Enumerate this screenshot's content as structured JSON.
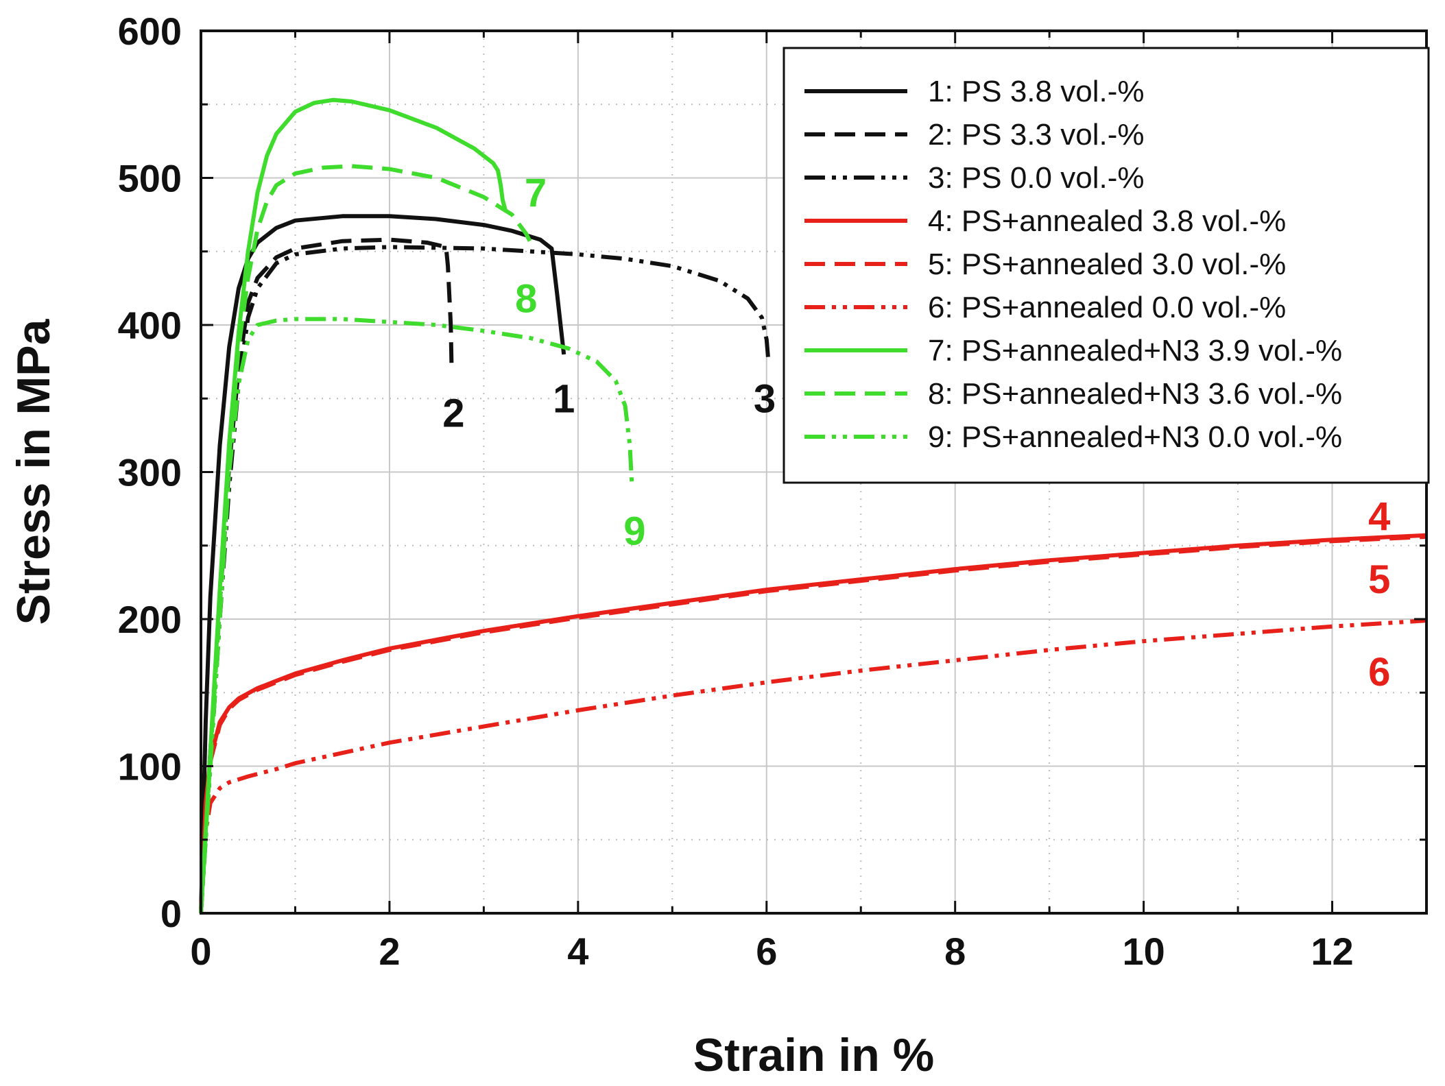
{
  "chart_data": {
    "type": "line",
    "title": "",
    "xlabel": "Strain in %",
    "ylabel": "Stress in MPa",
    "xlim": [
      0,
      13
    ],
    "ylim": [
      0,
      600
    ],
    "x_ticks": [
      0,
      2,
      4,
      6,
      8,
      10,
      12
    ],
    "y_ticks": [
      0,
      100,
      200,
      300,
      400,
      500,
      600
    ],
    "grid": true,
    "legend_position": "top-right",
    "colors": {
      "black": "#111111",
      "red": "#e8201a",
      "green": "#3fdc2e"
    },
    "series": [
      {
        "name": "1: PS 3.8 vol.-%",
        "label": "1",
        "color": "#111111",
        "dash": "solid",
        "x": [
          0,
          0.05,
          0.1,
          0.2,
          0.3,
          0.4,
          0.5,
          0.6,
          0.8,
          1.0,
          1.5,
          2.0,
          2.5,
          3.0,
          3.3,
          3.6,
          3.72,
          3.78,
          3.85
        ],
        "y": [
          0,
          130,
          215,
          318,
          385,
          425,
          445,
          456,
          466,
          471,
          474,
          474,
          472,
          468,
          464,
          458,
          452,
          420,
          380
        ]
      },
      {
        "name": "2: PS 3.3 vol.-%",
        "label": "2",
        "color": "#111111",
        "dash": "dashed",
        "x": [
          0,
          0.1,
          0.2,
          0.3,
          0.4,
          0.5,
          0.6,
          0.8,
          1.0,
          1.5,
          2.0,
          2.4,
          2.6,
          2.62,
          2.65,
          2.66
        ],
        "y": [
          0,
          110,
          210,
          305,
          370,
          415,
          432,
          446,
          452,
          457,
          458,
          456,
          453,
          440,
          400,
          368
        ]
      },
      {
        "name": "3: PS 0.0 vol.-%",
        "label": "3",
        "color": "#111111",
        "dash": "dashdotdot",
        "x": [
          0,
          0.1,
          0.2,
          0.3,
          0.4,
          0.5,
          0.6,
          0.8,
          1.0,
          1.5,
          2.0,
          3.0,
          4.0,
          4.5,
          5.0,
          5.5,
          5.8,
          5.95,
          6.0,
          6.02
        ],
        "y": [
          0,
          100,
          200,
          290,
          360,
          405,
          425,
          442,
          448,
          452,
          453,
          452,
          448,
          445,
          440,
          430,
          418,
          405,
          390,
          375
        ]
      },
      {
        "name": "4: PS+annealed 3.8 vol.-%",
        "label": "4",
        "color": "#e8201a",
        "dash": "solid",
        "x": [
          0,
          0.05,
          0.1,
          0.2,
          0.3,
          0.4,
          0.6,
          0.8,
          1,
          1.5,
          2,
          3,
          4,
          5,
          6,
          7,
          8,
          9,
          10,
          11,
          12,
          13
        ],
        "y": [
          0,
          75,
          105,
          130,
          140,
          146,
          153,
          158,
          163,
          172,
          180,
          192,
          202,
          211,
          220,
          227,
          234,
          240,
          245,
          250,
          254,
          257
        ]
      },
      {
        "name": "5: PS+annealed 3.0 vol.-%",
        "label": "5",
        "color": "#e8201a",
        "dash": "dashed",
        "x": [
          0,
          0.05,
          0.1,
          0.2,
          0.3,
          0.4,
          0.6,
          0.8,
          1,
          1.5,
          2,
          3,
          4,
          5,
          6,
          7,
          8,
          9,
          10,
          11,
          12,
          13
        ],
        "y": [
          0,
          72,
          103,
          128,
          139,
          145,
          152,
          157,
          162,
          171,
          179,
          191,
          201,
          210,
          219,
          226,
          233,
          239,
          244,
          249,
          253,
          256
        ]
      },
      {
        "name": "6: PS+annealed 0.0 vol.-%",
        "label": "6",
        "color": "#e8201a",
        "dash": "dashdotdot",
        "x": [
          0,
          0.05,
          0.1,
          0.2,
          0.3,
          0.5,
          0.8,
          1,
          1.5,
          2,
          3,
          4,
          5,
          6,
          7,
          8,
          9,
          10,
          11,
          12,
          13
        ],
        "y": [
          0,
          55,
          75,
          85,
          89,
          93,
          98,
          102,
          109,
          116,
          127,
          138,
          148,
          157,
          165,
          172,
          179,
          185,
          190,
          195,
          199
        ]
      },
      {
        "name": "7: PS+annealed+N3 3.9 vol.-%",
        "label": "7",
        "color": "#3fdc2e",
        "dash": "solid",
        "x": [
          0,
          0.1,
          0.2,
          0.3,
          0.4,
          0.5,
          0.6,
          0.7,
          0.8,
          1.0,
          1.2,
          1.4,
          1.6,
          2.0,
          2.5,
          2.9,
          3.1,
          3.15,
          3.18,
          3.2,
          3.23
        ],
        "y": [
          0,
          110,
          220,
          320,
          395,
          450,
          490,
          515,
          530,
          545,
          551,
          553,
          552,
          546,
          534,
          520,
          510,
          505,
          495,
          485,
          478
        ]
      },
      {
        "name": "8: PS+annealed+N3 3.6 vol.-%",
        "label": "8",
        "color": "#3fdc2e",
        "dash": "dashed",
        "x": [
          0,
          0.1,
          0.2,
          0.3,
          0.4,
          0.5,
          0.6,
          0.7,
          0.8,
          1.0,
          1.3,
          1.6,
          2.0,
          2.5,
          3.0,
          3.3,
          3.45,
          3.52
        ],
        "y": [
          0,
          105,
          210,
          310,
          385,
          432,
          465,
          484,
          495,
          503,
          507,
          508,
          506,
          500,
          487,
          475,
          462,
          453
        ]
      },
      {
        "name": "9: PS+annealed+N3 0.0 vol.-%",
        "label": "9",
        "color": "#3fdc2e",
        "dash": "dashdotdot",
        "x": [
          0,
          0.1,
          0.2,
          0.3,
          0.4,
          0.5,
          0.6,
          0.8,
          1.0,
          1.5,
          2.0,
          2.5,
          3.0,
          3.5,
          3.9,
          4.2,
          4.4,
          4.5,
          4.55,
          4.57
        ],
        "y": [
          0,
          100,
          200,
          300,
          360,
          390,
          400,
          403,
          404,
          404,
          402,
          400,
          396,
          391,
          384,
          375,
          362,
          345,
          318,
          293
        ]
      }
    ],
    "curve_labels": [
      {
        "text": "1",
        "x": 3.85,
        "y": 350,
        "color": "#111111"
      },
      {
        "text": "2",
        "x": 2.68,
        "y": 340,
        "color": "#111111"
      },
      {
        "text": "3",
        "x": 5.98,
        "y": 350,
        "color": "#111111"
      },
      {
        "text": "4",
        "x": 12.5,
        "y": 270,
        "color": "#e8201a"
      },
      {
        "text": "5",
        "x": 12.5,
        "y": 227,
        "color": "#e8201a"
      },
      {
        "text": "6",
        "x": 12.5,
        "y": 164,
        "color": "#e8201a"
      },
      {
        "text": "7",
        "x": 3.55,
        "y": 490,
        "color": "#3fdc2e"
      },
      {
        "text": "8",
        "x": 3.45,
        "y": 418,
        "color": "#3fdc2e"
      },
      {
        "text": "9",
        "x": 4.6,
        "y": 260,
        "color": "#3fdc2e"
      }
    ]
  }
}
